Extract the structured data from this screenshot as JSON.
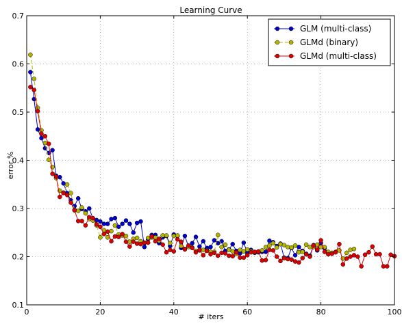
{
  "chart_data": {
    "type": "line",
    "title": "Learning Curve",
    "xlabel": "# iters",
    "ylabel": "error %",
    "xlim": [
      0,
      100
    ],
    "ylim": [
      0.1,
      0.7
    ],
    "x_ticks": [
      0,
      20,
      40,
      60,
      80,
      100
    ],
    "y_ticks": [
      0.1,
      0.2,
      0.3,
      0.4,
      0.5,
      0.6,
      0.7
    ],
    "x_tick_labels": [
      "0",
      "20",
      "40",
      "60",
      "80",
      "100"
    ],
    "y_tick_labels": [
      "0.1",
      "0.2",
      "0.3",
      "0.4",
      "0.5",
      "0.6",
      "0.7"
    ],
    "grid": true,
    "legend_position": "top-right",
    "series": [
      {
        "name": "GLM (multi-class)",
        "color": "#0000cc",
        "dashed": false,
        "x": [
          1,
          2,
          3,
          4,
          5,
          6,
          7,
          8,
          9,
          10,
          11,
          12,
          13,
          14,
          15,
          16,
          17,
          18,
          19,
          20,
          21,
          22,
          23,
          24,
          25,
          26,
          27,
          28,
          29,
          30,
          31,
          32,
          33,
          34,
          35,
          36,
          37,
          38,
          39,
          40,
          41,
          42,
          43,
          44,
          45,
          46,
          47,
          48,
          49,
          50,
          51,
          52,
          53,
          54,
          55,
          56,
          57,
          58,
          59,
          60,
          61,
          62,
          63,
          64,
          65,
          66,
          67,
          68,
          69,
          70,
          71,
          72,
          73,
          74,
          75,
          76,
          77,
          78,
          79,
          80,
          81,
          82,
          83
        ],
        "y": [
          0.583,
          0.527,
          0.464,
          0.446,
          0.425,
          0.415,
          0.421,
          0.368,
          0.365,
          0.352,
          0.332,
          0.317,
          0.305,
          0.321,
          0.299,
          0.294,
          0.3,
          0.279,
          0.276,
          0.273,
          0.268,
          0.268,
          0.278,
          0.28,
          0.262,
          0.268,
          0.275,
          0.268,
          0.25,
          0.27,
          0.273,
          0.22,
          0.236,
          0.245,
          0.245,
          0.228,
          0.24,
          0.243,
          0.222,
          0.246,
          0.243,
          0.218,
          0.243,
          0.221,
          0.228,
          0.241,
          0.221,
          0.232,
          0.218,
          0.22,
          0.234,
          0.228,
          0.232,
          0.212,
          0.215,
          0.226,
          0.212,
          0.207,
          0.229,
          0.208,
          0.214,
          0.208,
          0.209,
          0.21,
          0.21,
          0.233,
          0.23,
          0.222,
          0.227,
          0.198,
          0.197,
          0.218,
          0.203,
          0.22,
          0.212,
          0.206,
          0.202,
          0.224,
          0.213,
          0.228,
          0.217,
          0.208,
          0.207
        ]
      },
      {
        "name": "GLMd (binary)",
        "color": "#b5b500",
        "dashed": true,
        "x": [
          1,
          2,
          3,
          4,
          5,
          6,
          7,
          8,
          9,
          10,
          11,
          12,
          13,
          14,
          15,
          16,
          17,
          18,
          19,
          20,
          21,
          22,
          23,
          24,
          25,
          26,
          27,
          28,
          29,
          30,
          31,
          32,
          33,
          34,
          35,
          36,
          37,
          38,
          39,
          40,
          41,
          42,
          43,
          44,
          45,
          46,
          47,
          48,
          49,
          50,
          51,
          52,
          53,
          54,
          55,
          56,
          57,
          58,
          59,
          60,
          61,
          62,
          63,
          64,
          65,
          66,
          67,
          68,
          69,
          70,
          71,
          72,
          73,
          74,
          75,
          76,
          77,
          78,
          79,
          80,
          81,
          82,
          83,
          84,
          85,
          86,
          87,
          88,
          89
        ],
        "y": [
          0.619,
          0.569,
          0.509,
          0.462,
          0.436,
          0.401,
          0.386,
          0.363,
          0.337,
          0.333,
          0.35,
          0.332,
          0.297,
          0.295,
          0.302,
          0.29,
          0.278,
          0.275,
          0.265,
          0.24,
          0.255,
          0.24,
          0.253,
          0.265,
          0.246,
          0.244,
          0.243,
          0.231,
          0.237,
          0.239,
          0.232,
          0.229,
          0.239,
          0.24,
          0.24,
          0.233,
          0.244,
          0.244,
          0.228,
          0.243,
          0.244,
          0.222,
          0.216,
          0.22,
          0.219,
          0.212,
          0.213,
          0.214,
          0.213,
          0.21,
          0.21,
          0.245,
          0.22,
          0.225,
          0.214,
          0.211,
          0.206,
          0.214,
          0.211,
          0.215,
          0.211,
          0.209,
          0.21,
          0.213,
          0.22,
          0.223,
          0.228,
          0.219,
          0.226,
          0.224,
          0.22,
          0.219,
          0.223,
          0.209,
          0.21,
          0.225,
          0.22,
          0.22,
          0.225,
          0.22,
          0.22,
          0.21,
          0.208,
          0.21,
          0.213,
          0.196,
          0.208,
          0.214,
          0.216
        ]
      },
      {
        "name": "GLMd (multi-class)",
        "color": "#dd0000",
        "dashed": false,
        "x": [
          1,
          2,
          3,
          4,
          5,
          6,
          7,
          8,
          9,
          10,
          11,
          12,
          13,
          14,
          15,
          16,
          17,
          18,
          19,
          20,
          21,
          22,
          23,
          24,
          25,
          26,
          27,
          28,
          29,
          30,
          31,
          32,
          33,
          34,
          35,
          36,
          37,
          38,
          39,
          40,
          41,
          42,
          43,
          44,
          45,
          46,
          47,
          48,
          49,
          50,
          51,
          52,
          53,
          54,
          55,
          56,
          57,
          58,
          59,
          60,
          61,
          62,
          63,
          64,
          65,
          66,
          67,
          68,
          69,
          70,
          71,
          72,
          73,
          74,
          75,
          76,
          77,
          78,
          79,
          80,
          81,
          82,
          83,
          84,
          85,
          86,
          87,
          88,
          89,
          90,
          91,
          92,
          93,
          94,
          95,
          96,
          97,
          98,
          99,
          100
        ],
        "y": [
          0.552,
          0.546,
          0.502,
          0.455,
          0.45,
          0.434,
          0.372,
          0.366,
          0.324,
          0.332,
          0.328,
          0.312,
          0.296,
          0.274,
          0.274,
          0.265,
          0.282,
          0.28,
          0.267,
          0.262,
          0.247,
          0.252,
          0.232,
          0.242,
          0.241,
          0.247,
          0.231,
          0.221,
          0.231,
          0.227,
          0.226,
          0.229,
          0.229,
          0.242,
          0.232,
          0.237,
          0.225,
          0.209,
          0.214,
          0.211,
          0.236,
          0.231,
          0.215,
          0.223,
          0.218,
          0.209,
          0.214,
          0.203,
          0.212,
          0.205,
          0.208,
          0.202,
          0.208,
          0.207,
          0.202,
          0.201,
          0.209,
          0.198,
          0.198,
          0.203,
          0.209,
          0.21,
          0.211,
          0.192,
          0.193,
          0.214,
          0.213,
          0.2,
          0.191,
          0.197,
          0.195,
          0.194,
          0.19,
          0.188,
          0.197,
          0.205,
          0.2,
          0.223,
          0.215,
          0.234,
          0.21,
          0.205,
          0.206,
          0.209,
          0.226,
          0.184,
          0.196,
          0.2,
          0.203,
          0.2,
          0.18,
          0.204,
          0.209,
          0.221,
          0.205,
          0.205,
          0.18,
          0.18,
          0.204,
          0.201
        ]
      }
    ]
  }
}
